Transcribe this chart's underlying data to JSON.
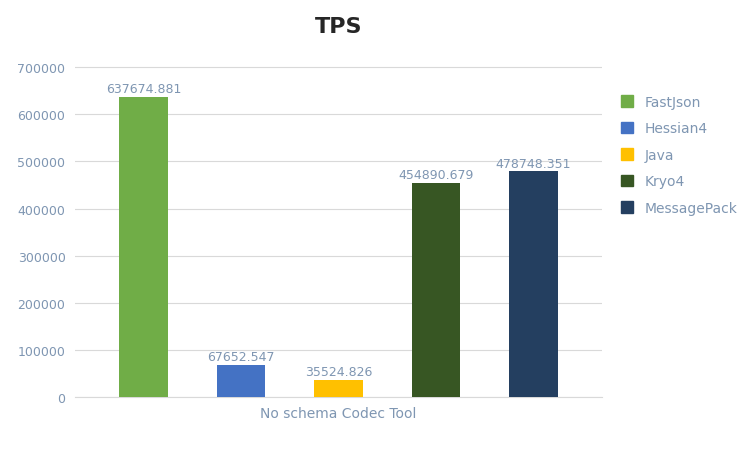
{
  "title": "TPS",
  "xlabel": "No schema Codec Tool",
  "categories": [
    "FastJson",
    "Hessian4",
    "Java",
    "Kryo4",
    "MessagePack"
  ],
  "values": [
    637674.881,
    67652.547,
    35524.826,
    454890.679,
    478748.351
  ],
  "colors": [
    "#70ad47",
    "#4472c4",
    "#ffc000",
    "#375623",
    "#243f60"
  ],
  "ylim": [
    0,
    730000
  ],
  "yticks": [
    0,
    100000,
    200000,
    300000,
    400000,
    500000,
    600000,
    700000
  ],
  "legend_labels": [
    "FastJson",
    "Hessian4",
    "Java",
    "Kryo4",
    "MessagePack"
  ],
  "title_fontsize": 16,
  "label_fontsize": 9,
  "tick_fontsize": 9,
  "legend_fontsize": 10,
  "xlabel_fontsize": 10,
  "title_color": "#262626",
  "tick_color": "#7f96b2",
  "label_color": "#7f96b2",
  "legend_color": "#7f96b2",
  "grid_color": "#d9d9d9",
  "bar_width": 0.5
}
